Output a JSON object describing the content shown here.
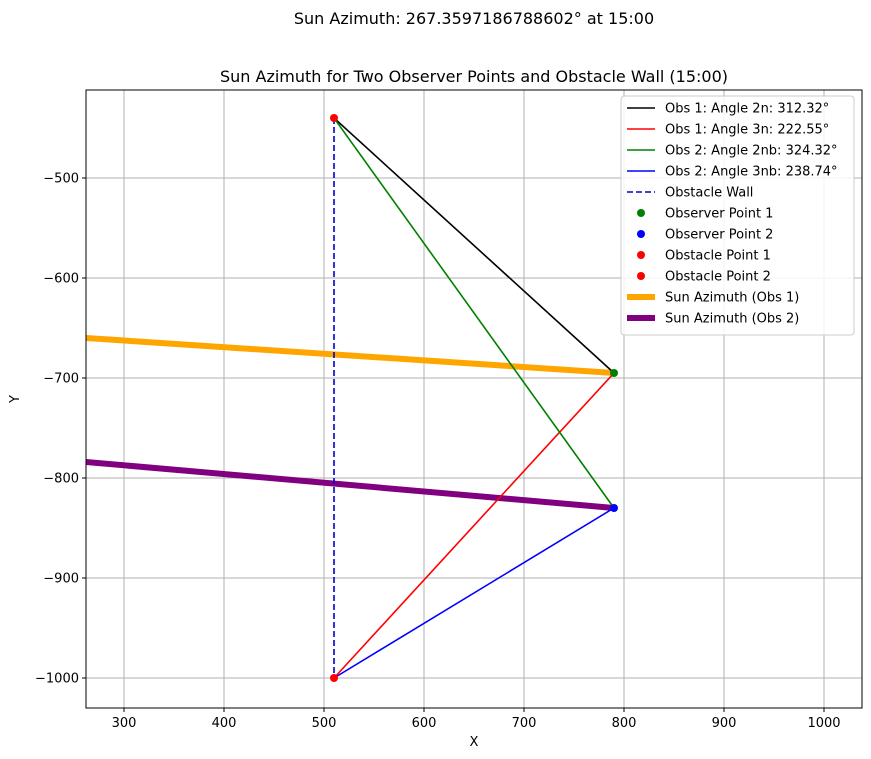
{
  "suptitle": "Sun Azimuth: 267.3597186788602° at 15:00",
  "chart_data": {
    "type": "line",
    "title": "Sun Azimuth for Two Observer Points and Obstacle Wall (15:00)",
    "xlabel": "X",
    "ylabel": "Y",
    "xlim": [
      262,
      1038
    ],
    "ylim": [
      -1030,
      -412
    ],
    "grid": true,
    "legend_position": "top-right",
    "xticks": [
      300,
      400,
      500,
      600,
      700,
      800,
      900,
      1000
    ],
    "yticks": [
      -500,
      -600,
      -700,
      -800,
      -900,
      -1000
    ],
    "xtick_labels": [
      "300",
      "400",
      "500",
      "600",
      "700",
      "800",
      "900",
      "1000"
    ],
    "ytick_labels": [
      "−500",
      "−600",
      "−700",
      "−800",
      "−900",
      "−1000"
    ],
    "series": [
      {
        "name": "Sun Azimuth (Obs 1)",
        "kind": "thick-line",
        "color": "#FFA500",
        "points": [
          [
            262,
            -660
          ],
          [
            790,
            -695
          ]
        ]
      },
      {
        "name": "Sun Azimuth (Obs 2)",
        "kind": "thick-line",
        "color": "#800080",
        "points": [
          [
            262,
            -784
          ],
          [
            790,
            -830
          ]
        ]
      },
      {
        "name": "Obs 1: Angle 2n: 312.32°",
        "kind": "line",
        "color": "#000000",
        "points": [
          [
            790,
            -695
          ],
          [
            510,
            -440
          ]
        ]
      },
      {
        "name": "Obs 1: Angle 3n: 222.55°",
        "kind": "line",
        "color": "#FF0000",
        "points": [
          [
            790,
            -695
          ],
          [
            510,
            -1000
          ]
        ]
      },
      {
        "name": "Obs 2: Angle 2nb: 324.32°",
        "kind": "line",
        "color": "#008000",
        "points": [
          [
            790,
            -830
          ],
          [
            510,
            -440
          ]
        ]
      },
      {
        "name": "Obs 2: Angle 3nb: 238.74°",
        "kind": "line",
        "color": "#0000FF",
        "points": [
          [
            790,
            -830
          ],
          [
            510,
            -1000
          ]
        ]
      },
      {
        "name": "Obstacle Wall",
        "kind": "dashed-line",
        "color": "#0000CD",
        "points": [
          [
            510,
            -440
          ],
          [
            510,
            -1000
          ]
        ]
      },
      {
        "name": "Observer Point 1",
        "kind": "point",
        "color": "#008000",
        "points": [
          [
            790,
            -695
          ]
        ]
      },
      {
        "name": "Observer Point 2",
        "kind": "point",
        "color": "#0000FF",
        "points": [
          [
            790,
            -830
          ]
        ]
      },
      {
        "name": "Obstacle Point 1",
        "kind": "point",
        "color": "#FF0000",
        "points": [
          [
            510,
            -440
          ]
        ]
      },
      {
        "name": "Obstacle Point 2",
        "kind": "point",
        "color": "#FF0000",
        "points": [
          [
            510,
            -1000
          ]
        ]
      }
    ],
    "legend_order": [
      2,
      3,
      4,
      5,
      6,
      7,
      8,
      9,
      10,
      0,
      1
    ]
  }
}
